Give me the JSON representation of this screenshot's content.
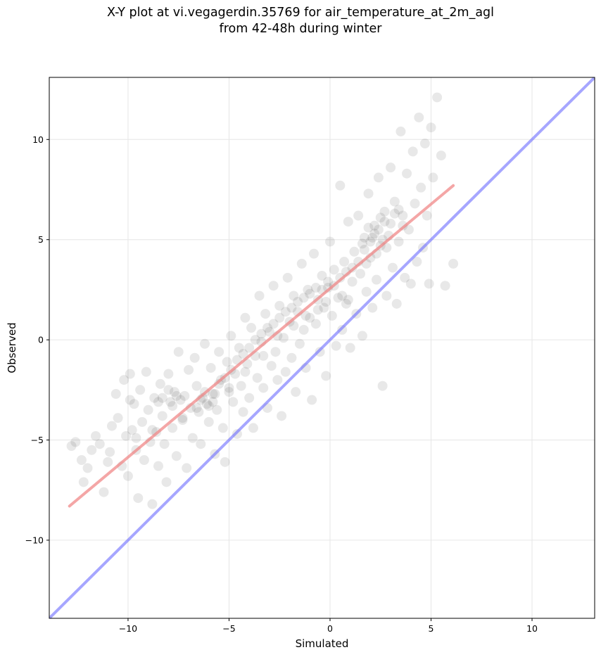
{
  "chart_data": {
    "type": "scatter",
    "title_line1": "X-Y plot at vi.vegagerdin.35769 for air_temperature_at_2m_agl",
    "title_line2": "from 42-48h during winter",
    "xlabel": "Simulated",
    "ylabel": "Observed",
    "xlim": [
      -13.9,
      13.1
    ],
    "ylim": [
      -13.9,
      13.1
    ],
    "xticks": [
      -10,
      -5,
      0,
      5,
      10
    ],
    "yticks": [
      -10,
      -5,
      0,
      5,
      10
    ],
    "xtick_labels": [
      "−10",
      "−5",
      "0",
      "5",
      "10"
    ],
    "ytick_labels": [
      "−10",
      "−5",
      "0",
      "5",
      "10"
    ],
    "grid": true,
    "point_color": "#000000",
    "point_alpha": 0.09,
    "regression_line": {
      "x": [
        -12.9,
        6.1
      ],
      "y": [
        -8.3,
        7.7
      ],
      "color": "#f08080"
    },
    "identity_line": {
      "x": [
        -13.9,
        13.1
      ],
      "y": [
        -13.9,
        13.1
      ],
      "color": "#6b6bff"
    },
    "points": [
      [
        -12.8,
        -5.3
      ],
      [
        -12.6,
        -5.1
      ],
      [
        -12.3,
        -6.0
      ],
      [
        -12.2,
        -7.1
      ],
      [
        -11.8,
        -5.5
      ],
      [
        -11.6,
        -4.8
      ],
      [
        -11.4,
        -5.2
      ],
      [
        -11.2,
        -7.6
      ],
      [
        -10.9,
        -5.6
      ],
      [
        -10.8,
        -4.3
      ],
      [
        -10.6,
        -2.7
      ],
      [
        -10.5,
        -3.9
      ],
      [
        -10.3,
        -6.3
      ],
      [
        -10.1,
        -4.8
      ],
      [
        -10.0,
        -6.8
      ],
      [
        -9.9,
        -1.7
      ],
      [
        -9.8,
        -4.5
      ],
      [
        -9.7,
        -3.2
      ],
      [
        -9.6,
        -5.5
      ],
      [
        -9.5,
        -7.9
      ],
      [
        -9.4,
        -2.5
      ],
      [
        -9.3,
        -4.1
      ],
      [
        -9.2,
        -6.0
      ],
      [
        -9.1,
        -1.6
      ],
      [
        -9.0,
        -3.5
      ],
      [
        -8.9,
        -5.1
      ],
      [
        -8.8,
        -8.2
      ],
      [
        -8.7,
        -2.9
      ],
      [
        -8.6,
        -4.6
      ],
      [
        -8.5,
        -6.3
      ],
      [
        -8.4,
        -2.2
      ],
      [
        -8.3,
        -3.8
      ],
      [
        -8.2,
        -5.2
      ],
      [
        -8.1,
        -7.1
      ],
      [
        -8.0,
        -1.7
      ],
      [
        -7.9,
        -3.1
      ],
      [
        -7.8,
        -4.4
      ],
      [
        -7.7,
        -2.6
      ],
      [
        -7.6,
        -5.8
      ],
      [
        -7.5,
        -0.6
      ],
      [
        -7.4,
        -3.0
      ],
      [
        -7.3,
        -4.0
      ],
      [
        -7.2,
        -2.8
      ],
      [
        -7.1,
        -6.4
      ],
      [
        -7.0,
        -1.5
      ],
      [
        -6.9,
        -3.4
      ],
      [
        -6.8,
        -4.9
      ],
      [
        -6.7,
        -0.9
      ],
      [
        -6.6,
        -2.3
      ],
      [
        -6.5,
        -3.6
      ],
      [
        -6.4,
        -5.2
      ],
      [
        -6.3,
        -2.9
      ],
      [
        -6.2,
        -0.2
      ],
      [
        -6.1,
        -3.2
      ],
      [
        -6.0,
        -4.1
      ],
      [
        -5.9,
        -1.4
      ],
      [
        -5.8,
        -2.7
      ],
      [
        -5.7,
        -5.7
      ],
      [
        -5.6,
        -3.5
      ],
      [
        -5.5,
        -0.6
      ],
      [
        -5.4,
        -2.0
      ],
      [
        -5.3,
        -4.4
      ],
      [
        -5.2,
        -6.1
      ],
      [
        -5.1,
        -1.1
      ],
      [
        -5.0,
        -2.6
      ],
      [
        -4.9,
        0.2
      ],
      [
        -4.8,
        -3.1
      ],
      [
        -4.7,
        -1.7
      ],
      [
        -4.6,
        -4.7
      ],
      [
        -4.5,
        -0.4
      ],
      [
        -4.4,
        -2.3
      ],
      [
        -4.3,
        -3.6
      ],
      [
        -4.2,
        1.1
      ],
      [
        -4.1,
        -1.2
      ],
      [
        -4.0,
        -2.9
      ],
      [
        -3.9,
        0.6
      ],
      [
        -3.8,
        -4.4
      ],
      [
        -3.7,
        -0.8
      ],
      [
        -3.6,
        -1.9
      ],
      [
        -3.5,
        2.2
      ],
      [
        -3.4,
        -0.1
      ],
      [
        -3.3,
        -2.4
      ],
      [
        -3.2,
        1.3
      ],
      [
        -3.1,
        -3.4
      ],
      [
        -3.0,
        0.4
      ],
      [
        -2.9,
        -1.3
      ],
      [
        -2.8,
        2.7
      ],
      [
        -2.7,
        -0.6
      ],
      [
        -2.6,
        -2.0
      ],
      [
        -2.5,
        1.7
      ],
      [
        -2.4,
        -3.8
      ],
      [
        -2.3,
        0.1
      ],
      [
        -2.2,
        -1.6
      ],
      [
        -2.1,
        3.1
      ],
      [
        -2.0,
        0.9
      ],
      [
        -1.9,
        -0.9
      ],
      [
        -1.8,
        2.2
      ],
      [
        -1.7,
        -2.6
      ],
      [
        -1.6,
        1.4
      ],
      [
        -1.5,
        -0.2
      ],
      [
        -1.4,
        3.8
      ],
      [
        -1.3,
        0.5
      ],
      [
        -1.2,
        -1.4
      ],
      [
        -1.1,
        2.5
      ],
      [
        -1.0,
        1.1
      ],
      [
        -0.9,
        -3.0
      ],
      [
        -0.8,
        4.3
      ],
      [
        -0.7,
        0.8
      ],
      [
        -0.6,
        2.0
      ],
      [
        -0.5,
        -0.6
      ],
      [
        -0.4,
        3.2
      ],
      [
        -0.3,
        1.6
      ],
      [
        -0.2,
        -1.8
      ],
      [
        -0.1,
        2.6
      ],
      [
        0.0,
        4.9
      ],
      [
        0.1,
        1.2
      ],
      [
        0.2,
        3.5
      ],
      [
        0.3,
        -0.3
      ],
      [
        0.4,
        2.1
      ],
      [
        0.5,
        7.7
      ],
      [
        0.6,
        0.5
      ],
      [
        0.7,
        3.9
      ],
      [
        0.8,
        1.8
      ],
      [
        0.9,
        5.9
      ],
      [
        1.0,
        -0.4
      ],
      [
        1.1,
        2.9
      ],
      [
        1.2,
        4.4
      ],
      [
        1.3,
        1.3
      ],
      [
        1.4,
        6.2
      ],
      [
        1.5,
        3.3
      ],
      [
        1.6,
        0.2
      ],
      [
        1.7,
        5.1
      ],
      [
        1.8,
        2.4
      ],
      [
        1.9,
        7.3
      ],
      [
        2.0,
        4.1
      ],
      [
        2.1,
        1.6
      ],
      [
        2.2,
        5.7
      ],
      [
        2.3,
        3.0
      ],
      [
        2.4,
        8.1
      ],
      [
        2.5,
        4.7
      ],
      [
        2.6,
        -2.3
      ],
      [
        2.7,
        6.4
      ],
      [
        2.8,
        2.2
      ],
      [
        2.9,
        5.2
      ],
      [
        3.0,
        8.6
      ],
      [
        3.1,
        3.6
      ],
      [
        3.2,
        6.9
      ],
      [
        3.3,
        1.8
      ],
      [
        3.4,
        4.9
      ],
      [
        3.5,
        10.4
      ],
      [
        3.6,
        6.2
      ],
      [
        3.7,
        3.1
      ],
      [
        3.8,
        8.3
      ],
      [
        3.9,
        5.5
      ],
      [
        4.0,
        2.8
      ],
      [
        4.1,
        9.4
      ],
      [
        4.2,
        6.8
      ],
      [
        4.3,
        3.9
      ],
      [
        4.4,
        11.1
      ],
      [
        4.5,
        7.6
      ],
      [
        4.6,
        4.6
      ],
      [
        4.7,
        9.8
      ],
      [
        4.8,
        6.2
      ],
      [
        4.9,
        2.8
      ],
      [
        5.0,
        10.6
      ],
      [
        5.1,
        8.1
      ],
      [
        5.3,
        12.1
      ],
      [
        5.5,
        9.2
      ],
      [
        5.7,
        2.7
      ],
      [
        6.1,
        3.8
      ],
      [
        -10.2,
        -2.0
      ],
      [
        -9.9,
        -3.0
      ],
      [
        -8.5,
        -3.1
      ],
      [
        -8.3,
        -2.9
      ],
      [
        -8.0,
        -2.5
      ],
      [
        -7.8,
        -3.3
      ],
      [
        -7.6,
        -2.8
      ],
      [
        -6.4,
        -3.0
      ],
      [
        -6.2,
        -2.6
      ],
      [
        -6.0,
        -3.3
      ],
      [
        -5.8,
        -3.1
      ],
      [
        -5.5,
        -2.2
      ],
      [
        -5.2,
        -1.9
      ],
      [
        -4.9,
        -1.5
      ],
      [
        -4.6,
        -1.0
      ],
      [
        -4.3,
        -0.7
      ],
      [
        -4.0,
        -0.4
      ],
      [
        -3.7,
        0.0
      ],
      [
        -3.4,
        0.3
      ],
      [
        -3.1,
        0.6
      ],
      [
        -2.8,
        0.8
      ],
      [
        -2.5,
        1.1
      ],
      [
        -2.2,
        1.4
      ],
      [
        -1.9,
        1.6
      ],
      [
        -1.6,
        1.9
      ],
      [
        -1.3,
        2.1
      ],
      [
        -1.0,
        2.3
      ],
      [
        -0.7,
        2.6
      ],
      [
        -0.4,
        2.5
      ],
      [
        -0.1,
        2.9
      ],
      [
        0.2,
        2.7
      ],
      [
        0.5,
        3.1
      ],
      [
        0.8,
        3.4
      ],
      [
        1.1,
        3.6
      ],
      [
        1.4,
        3.9
      ],
      [
        1.7,
        4.5
      ],
      [
        2.0,
        4.9
      ],
      [
        2.2,
        5.3
      ],
      [
        2.4,
        5.5
      ],
      [
        2.6,
        5.0
      ],
      [
        2.8,
        4.6
      ],
      [
        3.0,
        5.8
      ],
      [
        3.2,
        6.3
      ],
      [
        3.4,
        6.5
      ],
      [
        1.9,
        5.6
      ],
      [
        2.3,
        4.3
      ],
      [
        1.6,
        4.8
      ],
      [
        2.7,
        5.9
      ],
      [
        3.6,
        5.7
      ],
      [
        2.1,
        5.1
      ],
      [
        1.8,
        3.8
      ],
      [
        2.5,
        6.1
      ],
      [
        0.6,
        2.2
      ],
      [
        0.9,
        2.0
      ],
      [
        -0.2,
        1.9
      ],
      [
        -0.6,
        1.5
      ],
      [
        -1.2,
        1.2
      ],
      [
        -1.8,
        0.7
      ],
      [
        -2.6,
        0.2
      ],
      [
        -3.3,
        -0.8
      ],
      [
        -4.2,
        -1.6
      ],
      [
        -5.0,
        -2.4
      ],
      [
        -5.7,
        -2.7
      ],
      [
        -6.6,
        -3.4
      ],
      [
        -7.3,
        -3.9
      ],
      [
        -8.8,
        -4.5
      ],
      [
        -9.6,
        -4.9
      ],
      [
        -11.0,
        -6.1
      ],
      [
        -12.0,
        -6.4
      ]
    ]
  }
}
